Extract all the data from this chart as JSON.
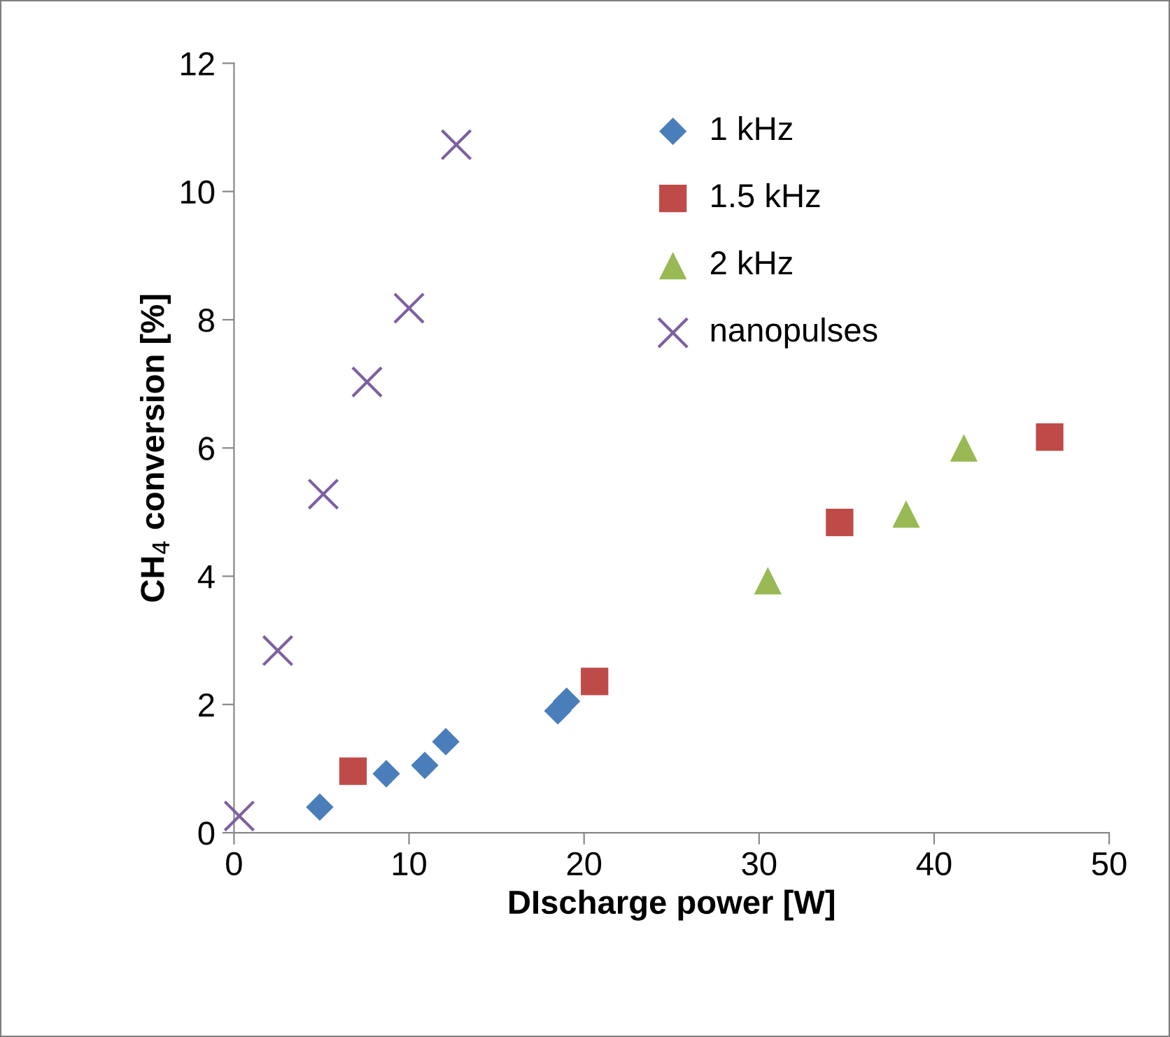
{
  "chart_data": {
    "type": "scatter",
    "xlabel": "DIscharge power [W]",
    "ylabel": "CH$_{4}$ conversion [%]",
    "xlim": [
      0,
      50
    ],
    "xticks": [
      0,
      10,
      20,
      30,
      40,
      50
    ],
    "ylim": [
      0,
      12
    ],
    "yticks": [
      0,
      2,
      4,
      6,
      8,
      10,
      12
    ],
    "grid": false,
    "legend": "top",
    "series": [
      {
        "name": "1 kHz",
        "color": "#4a7ebb",
        "marker": "diamond",
        "x": [
          4.9,
          8.7,
          10.9,
          12.1,
          18.5,
          19.0
        ],
        "values": [
          0.4,
          0.92,
          1.05,
          1.42,
          1.9,
          2.05
        ]
      },
      {
        "name": "1.5 kHz",
        "color": "#be4b48",
        "marker": "square",
        "x": [
          6.8,
          20.6,
          34.6,
          46.6
        ],
        "values": [
          0.96,
          2.36,
          4.84,
          6.17
        ]
      },
      {
        "name": "2 kHz",
        "color": "#98b954",
        "marker": "triangle",
        "x": [
          30.5,
          38.4,
          41.7
        ],
        "values": [
          3.93,
          4.97,
          6.0
        ]
      },
      {
        "name": "nanopulses",
        "color": "#7d60a0",
        "marker": "cross",
        "x": [
          0.3,
          2.5,
          5.1,
          7.6,
          10.0,
          12.7
        ],
        "values": [
          0.26,
          2.84,
          5.28,
          7.03,
          8.18,
          10.73
        ]
      }
    ]
  }
}
